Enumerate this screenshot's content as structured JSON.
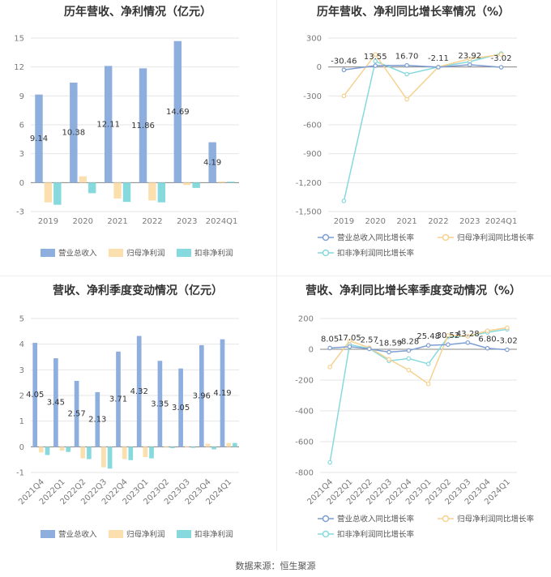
{
  "source": "数据来源：恒生聚源",
  "colors": {
    "revenue": "#8eaedd",
    "net_profit": "#fbdfae",
    "deducted_profit": "#86d9dc",
    "revenue_line": "#7d9ed3",
    "net_line": "#f6d18f",
    "deducted_line": "#86d9dc"
  },
  "chart_data": [
    {
      "id": "annual-bar",
      "type": "bar",
      "title": "历年营收、净利情况（亿元）",
      "categories": [
        "2019",
        "2020",
        "2021",
        "2022",
        "2023",
        "2024Q1"
      ],
      "ylim": [
        -3,
        15
      ],
      "yticks": [
        -3,
        0,
        3,
        6,
        9,
        12,
        15
      ],
      "series": [
        {
          "name": "营业总收入",
          "values": [
            9.14,
            10.38,
            12.11,
            11.86,
            14.69,
            4.19
          ],
          "labels": [
            "9.14",
            "10.38",
            "12.11",
            "11.86",
            "14.69",
            "4.19"
          ]
        },
        {
          "name": "归母净利润",
          "values": [
            -2.05,
            0.65,
            -1.65,
            -1.85,
            -0.25,
            0.12
          ]
        },
        {
          "name": "扣非净利润",
          "values": [
            -2.3,
            -1.1,
            -2.0,
            -2.05,
            -0.55,
            0.1
          ]
        }
      ]
    },
    {
      "id": "annual-line",
      "type": "line",
      "title": "历年营收、净利同比增长率情况（%）",
      "categories": [
        "2019",
        "2020",
        "2021",
        "2022",
        "2023",
        "2024Q1"
      ],
      "ylim": [
        -1500,
        300
      ],
      "yticks": [
        -1500,
        -1200,
        -900,
        -600,
        -300,
        0,
        300
      ],
      "ytick_labels": [
        "-1,500",
        "-1,200",
        "-900",
        "-600",
        "-300",
        "0",
        "300"
      ],
      "series": [
        {
          "name": "营业总收入同比增长率",
          "values": [
            -30.46,
            13.55,
            16.7,
            -2.11,
            23.92,
            -3.02
          ],
          "labels": [
            "-30.46",
            "13.55",
            "16.70",
            "-2.11",
            "23.92",
            "-3.02"
          ]
        },
        {
          "name": "归母净利润同比增长率",
          "values": [
            -300,
            130,
            -335,
            0,
            85,
            130
          ]
        },
        {
          "name": "扣非净利润同比增长率",
          "values": [
            -1390,
            60,
            -75,
            0,
            55,
            140
          ]
        }
      ]
    },
    {
      "id": "quarter-bar",
      "type": "bar",
      "title": "营收、净利季度变动情况（亿元）",
      "categories": [
        "2021Q4",
        "2022Q1",
        "2022Q2",
        "2022Q3",
        "2022Q4",
        "2023Q1",
        "2023Q2",
        "2023Q3",
        "2023Q4",
        "2024Q1"
      ],
      "ylim": [
        -1,
        5
      ],
      "yticks": [
        -1,
        0,
        1,
        2,
        3,
        4,
        5
      ],
      "series": [
        {
          "name": "营业总收入",
          "values": [
            4.05,
            3.45,
            2.57,
            2.13,
            3.71,
            4.32,
            3.35,
            3.05,
            3.96,
            4.19
          ],
          "labels": [
            "4.05",
            "3.45",
            "2.57",
            "2.13",
            "3.71",
            "4.32",
            "3.35",
            "3.05",
            "3.96",
            "4.19"
          ]
        },
        {
          "name": "归母净利润",
          "values": [
            -0.22,
            -0.15,
            -0.45,
            -0.8,
            -0.48,
            -0.4,
            -0.03,
            -0.02,
            0.12,
            0.15
          ]
        },
        {
          "name": "扣非净利润",
          "values": [
            -0.32,
            -0.2,
            -0.48,
            -0.85,
            -0.52,
            -0.45,
            -0.05,
            -0.04,
            -0.1,
            0.15
          ]
        }
      ]
    },
    {
      "id": "quarter-line",
      "type": "line",
      "title": "营收、净利同比增长率季度变动情况（%）",
      "categories": [
        "2021Q4",
        "2022Q1",
        "2022Q2",
        "2022Q3",
        "2022Q4",
        "2023Q1",
        "2023Q2",
        "2023Q3",
        "2023Q4",
        "2024Q1"
      ],
      "ylim": [
        -800,
        200
      ],
      "yticks": [
        -800,
        -600,
        -400,
        -200,
        0,
        200
      ],
      "ytick_labels": [
        "-800",
        "-600",
        "-400",
        "-200",
        "0",
        "200"
      ],
      "series": [
        {
          "name": "营业总收入同比增长率",
          "values": [
            8.05,
            17.05,
            2.57,
            -18.59,
            -8.28,
            25.48,
            30.52,
            43.28,
            6.8,
            -3.02
          ],
          "labels": [
            "8.05",
            "17.05",
            "2.57",
            "-18.59",
            "-8.28",
            "25.48",
            "30.52",
            "43.28",
            "6.80",
            "-3.02"
          ]
        },
        {
          "name": "归母净利润同比增长率",
          "values": [
            -115,
            55,
            10,
            -65,
            -135,
            -225,
            90,
            85,
            120,
            140
          ]
        },
        {
          "name": "扣非净利润同比增长率",
          "values": [
            -735,
            30,
            5,
            -75,
            -60,
            -95,
            80,
            85,
            110,
            130
          ]
        }
      ]
    }
  ]
}
